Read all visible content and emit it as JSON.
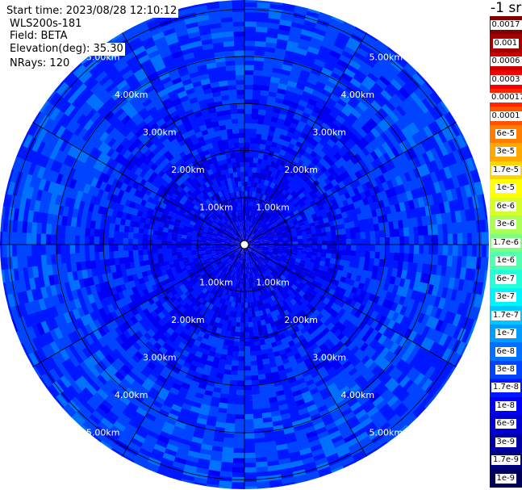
{
  "info": {
    "start_time": "Start time: 2023/08/28 12:10:12",
    "instrument": "WLS200s-181",
    "field": "Field: BETA",
    "elevation": "Elevation(deg): 35.30",
    "nrays": "NRays: 120"
  },
  "chart_data": {
    "type": "heatmap",
    "projection": "polar",
    "field": "BETA",
    "elevation_deg": 35.3,
    "n_rays": 120,
    "range_rings": [
      {
        "value": 1,
        "label": "1.00km"
      },
      {
        "value": 2,
        "label": "2.00km"
      },
      {
        "value": 3,
        "label": "3.00km"
      },
      {
        "value": 4,
        "label": "4.00km"
      },
      {
        "value": 5,
        "label": "5.00km"
      }
    ],
    "max_range_km": 5.2,
    "spokes_deg": [
      0,
      30,
      60,
      90,
      120,
      150,
      180,
      210,
      240,
      270,
      300,
      330
    ],
    "range_label_azimuths_deg": [
      37,
      143,
      217,
      323
    ],
    "unit_label": "-1 sr",
    "colorbar": {
      "scale": "log",
      "labels": [
        "0.0017",
        "0.001",
        "0.0006",
        "0.0003",
        "0.00017",
        "0.0001",
        "6e-5",
        "3e-5",
        "1.7e-5",
        "1e-5",
        "6e-6",
        "3e-6",
        "1.7e-6",
        "1e-6",
        "6e-7",
        "3e-7",
        "1.7e-7",
        "1e-7",
        "6e-8",
        "3e-8",
        "1.7e-8",
        "1e-8",
        "6e-9",
        "3e-9",
        "1.7e-9",
        "1e-9"
      ],
      "colors": [
        "#7f0000",
        "#a50000",
        "#d00000",
        "#f40000",
        "#ff2500",
        "#ff5100",
        "#ff7d00",
        "#ffa900",
        "#ffd400",
        "#ffff00",
        "#d4ff2b",
        "#a9ff56",
        "#7dff82",
        "#51ffae",
        "#25ffd9",
        "#00f4ff",
        "#00c8ff",
        "#009cff",
        "#0070ff",
        "#0044ff",
        "#0018ff",
        "#0000f4",
        "#0000d0",
        "#0000a5",
        "#00007f",
        "#00005a"
      ]
    },
    "value_range_by_ring": [
      {
        "ring": "0-1.00km",
        "typical": "1e-8 to 3e-8"
      },
      {
        "ring": "1.00-2.00km",
        "typical": "1.7e-8 to 6e-8"
      },
      {
        "ring": "2.00-5.00km",
        "typical": "3e-8 to 1e-7"
      }
    ]
  }
}
